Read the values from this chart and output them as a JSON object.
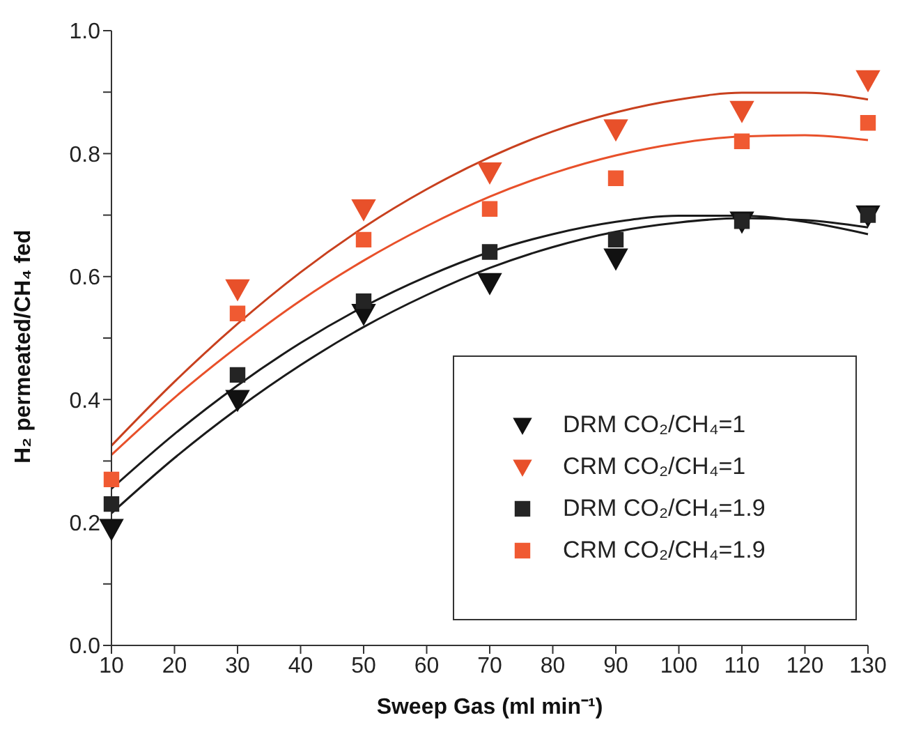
{
  "chart_data": {
    "type": "scatter",
    "xlabel": "Sweep Gas (ml min⁻¹)",
    "ylabel": "H₂ permeated/CH₄ fed",
    "x": [
      10,
      30,
      50,
      70,
      90,
      110,
      130
    ],
    "xlim": [
      10,
      130
    ],
    "xticks": [
      10,
      20,
      30,
      40,
      50,
      60,
      70,
      80,
      90,
      100,
      110,
      120,
      130
    ],
    "ylim": [
      0,
      1
    ],
    "yticks": [
      {
        "value": 0,
        "label": "0.0"
      },
      {
        "value": 0.1,
        "label": null
      },
      {
        "value": 0.2,
        "label": "0.2"
      },
      {
        "value": 0.3,
        "label": null
      },
      {
        "value": 0.4,
        "label": "0.4"
      },
      {
        "value": 0.5,
        "label": null
      },
      {
        "value": 0.6,
        "label": "0.6"
      },
      {
        "value": 0.7,
        "label": null
      },
      {
        "value": 0.8,
        "label": "0.8"
      },
      {
        "value": 0.9,
        "label": null
      },
      {
        "value": 1,
        "label": "1.0"
      }
    ],
    "grid": false,
    "legend": "bottom right",
    "series": [
      {
        "name": "DRM CO₂/CH₄=1",
        "marker": "triangle",
        "color": "#111111",
        "values": [
          0.19,
          0.4,
          0.54,
          0.59,
          0.63,
          0.69,
          0.7
        ]
      },
      {
        "name": "CRM CO₂/CH₄=1",
        "marker": "triangle",
        "color": "#e8502a",
        "values": [
          null,
          0.58,
          0.71,
          0.77,
          0.84,
          0.87,
          0.92
        ]
      },
      {
        "name": "DRM CO₂/CH₄=1.9",
        "marker": "square",
        "color": "#242424",
        "values": [
          0.23,
          0.44,
          0.56,
          0.64,
          0.66,
          0.69,
          0.7
        ]
      },
      {
        "name": "CRM CO₂/CH₄=1.9",
        "marker": "square",
        "color": "#f05a32",
        "values": [
          0.27,
          0.54,
          0.66,
          0.71,
          0.76,
          0.82,
          0.85
        ]
      },
      {
        "type": "line",
        "marker": "none",
        "color": "#1a1a1a",
        "x": [
          10,
          20,
          30,
          40,
          50,
          60,
          70,
          80,
          90,
          100,
          110,
          120,
          130
        ],
        "values": [
          0.215,
          0.305,
          0.385,
          0.456,
          0.518,
          0.57,
          0.614,
          0.648,
          0.673,
          0.688,
          0.695,
          0.692,
          0.68
        ]
      },
      {
        "type": "line",
        "marker": "none",
        "color": "#c8401e",
        "x": [
          10,
          20,
          30,
          40,
          50,
          60,
          70,
          80,
          90,
          100,
          110,
          120,
          130
        ],
        "values": [
          0.325,
          0.429,
          0.523,
          0.607,
          0.68,
          0.742,
          0.794,
          0.836,
          0.867,
          0.888,
          0.899,
          0.899,
          0.888
        ]
      },
      {
        "type": "line",
        "marker": "none",
        "color": "#1a1a1a",
        "x": [
          10,
          20,
          30,
          40,
          50,
          60,
          70,
          80,
          90,
          100,
          110,
          120,
          130
        ],
        "values": [
          0.255,
          0.344,
          0.423,
          0.492,
          0.551,
          0.6,
          0.64,
          0.669,
          0.689,
          0.699,
          0.699,
          0.689,
          0.669
        ]
      },
      {
        "type": "line",
        "marker": "none",
        "color": "#e8502a",
        "x": [
          10,
          20,
          30,
          40,
          50,
          60,
          70,
          80,
          90,
          100,
          110,
          120,
          130
        ],
        "values": [
          0.31,
          0.403,
          0.486,
          0.561,
          0.626,
          0.682,
          0.73,
          0.768,
          0.797,
          0.817,
          0.828,
          0.83,
          0.822
        ]
      }
    ]
  }
}
